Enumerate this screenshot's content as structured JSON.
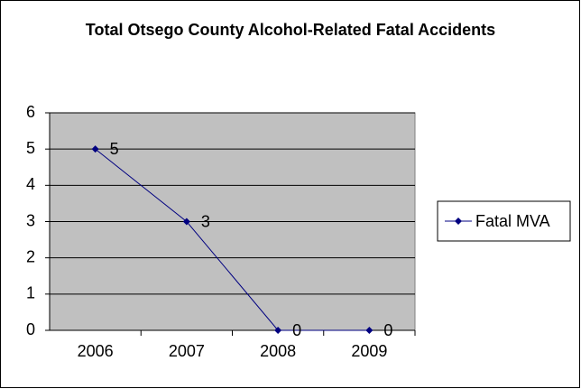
{
  "chart_data": {
    "type": "line",
    "title": "Total Otsego County Alcohol-Related Fatal Accidents",
    "categories": [
      "2006",
      "2007",
      "2008",
      "2009"
    ],
    "series": [
      {
        "name": "Fatal MVA",
        "color": "#000080",
        "values": [
          5,
          3,
          0,
          0
        ]
      }
    ],
    "ylim": [
      0,
      6
    ],
    "yticks": [
      0,
      1,
      2,
      3,
      4,
      5,
      6
    ],
    "grid": true,
    "legend": "right",
    "data_labels": true,
    "plot_background": "#c0c0c0"
  }
}
